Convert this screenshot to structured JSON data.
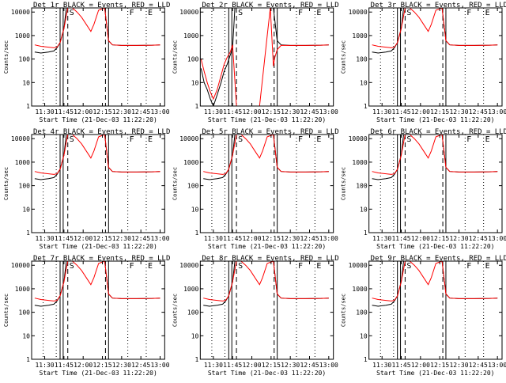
{
  "colors": {
    "background": "#ffffff",
    "axes": "#000000",
    "events": "#000000",
    "lld": "#ff0000"
  },
  "legend_text": "BLACK = Events, RED = LLD",
  "xlabel": "Start Time (21-Dec-03 11:22:20)",
  "ylabel": "Counts/sec",
  "x_ticks": [
    "11:30",
    "11:45",
    "12:00",
    "12:15",
    "12:30",
    "12:45",
    "13:00"
  ],
  "y_ticks": [
    "1",
    "10",
    "100",
    "1000",
    "10000"
  ],
  "markers": {
    "s_label": "S",
    "f_label": "F",
    "e_label": "E"
  },
  "chart_data": [
    {
      "type": "line",
      "title": "Det 1r",
      "xlabel": "Start Time (21-Dec-03 11:22:20)",
      "ylabel": "Counts/sec",
      "xlim": [
        11.33,
        13.06
      ],
      "ylim": [
        1,
        15000
      ],
      "yscale": "log",
      "legend": "BLACK = Events, RED = LLD",
      "series": [
        {
          "name": "Events",
          "x": [
            11.37,
            11.45,
            11.55,
            11.62,
            11.66,
            11.7,
            11.75,
            11.78,
            12.28,
            12.33,
            12.38,
            12.5,
            12.7,
            12.9,
            13.0
          ],
          "y": [
            200,
            180,
            200,
            220,
            300,
            500,
            2000,
            15000,
            15000,
            600,
            400,
            380,
            380,
            390,
            400
          ]
        },
        {
          "name": "LLD",
          "x": [
            11.37,
            11.45,
            11.55,
            11.62,
            11.66,
            11.7,
            11.75,
            11.8,
            11.86,
            11.92,
            11.98,
            12.04,
            12.1,
            12.14,
            12.2,
            12.28,
            12.33,
            12.38,
            12.5,
            12.7,
            12.9,
            13.0
          ],
          "y": [
            400,
            350,
            320,
            300,
            320,
            500,
            2000,
            15000,
            15000,
            10000,
            6000,
            3000,
            1500,
            3000,
            12000,
            15000,
            600,
            400,
            380,
            380,
            390,
            400
          ]
        }
      ]
    },
    {
      "type": "line",
      "title": "Det 2r",
      "xlabel": "Start Time (21-Dec-03 11:22:20)",
      "ylabel": "Counts/sec",
      "xlim": [
        11.33,
        13.06
      ],
      "ylim": [
        1,
        15000
      ],
      "yscale": "log",
      "legend": "BLACK = Events, RED = LLD",
      "series": [
        {
          "name": "Events",
          "x": [
            11.34,
            11.38,
            11.42,
            11.46,
            11.5,
            11.55,
            11.6,
            11.64,
            11.68,
            11.72,
            11.75,
            11.78,
            12.28,
            12.33,
            12.38,
            12.5,
            12.7,
            12.9,
            13.0
          ],
          "y": [
            40,
            10,
            5,
            2,
            1,
            3,
            10,
            30,
            60,
            150,
            300,
            15000,
            15000,
            600,
            400,
            380,
            380,
            390,
            400
          ]
        },
        {
          "name": "LLD",
          "x": [
            11.34,
            11.38,
            11.42,
            11.46,
            11.5,
            11.55,
            11.6,
            11.64,
            11.68,
            11.72,
            11.75,
            11.8,
            11.95,
            12.1,
            12.15,
            12.2,
            12.24,
            12.28,
            12.3,
            12.33,
            12.38,
            12.5,
            12.7,
            12.9,
            13.0
          ],
          "y": [
            100,
            30,
            10,
            4,
            2,
            5,
            20,
            60,
            120,
            200,
            400,
            1,
            1,
            1,
            30,
            1000,
            15000,
            50,
            120,
            250,
            380,
            380,
            380,
            390,
            400
          ]
        }
      ]
    },
    {
      "type": "line",
      "title": "Det 3r",
      "xlabel": "Start Time (21-Dec-03 11:22:20)",
      "ylabel": "Counts/sec",
      "xlim": [
        11.33,
        13.06
      ],
      "ylim": [
        1,
        15000
      ],
      "yscale": "log",
      "legend": "BLACK = Events, RED = LLD",
      "series": [
        {
          "name": "Events",
          "x": [
            11.37,
            11.45,
            11.55,
            11.62,
            11.66,
            11.7,
            11.75,
            11.78,
            12.28,
            12.33,
            12.38,
            12.5,
            12.7,
            12.9,
            13.0
          ],
          "y": [
            200,
            180,
            200,
            220,
            300,
            500,
            2000,
            15000,
            15000,
            600,
            400,
            380,
            380,
            390,
            400
          ]
        },
        {
          "name": "LLD",
          "x": [
            11.37,
            11.45,
            11.55,
            11.62,
            11.66,
            11.7,
            11.75,
            11.8,
            11.86,
            11.92,
            11.98,
            12.04,
            12.1,
            12.14,
            12.2,
            12.28,
            12.33,
            12.38,
            12.5,
            12.7,
            12.9,
            13.0
          ],
          "y": [
            400,
            350,
            320,
            300,
            320,
            500,
            2000,
            15000,
            15000,
            10000,
            6000,
            3000,
            1500,
            3000,
            12000,
            15000,
            600,
            400,
            380,
            380,
            390,
            400
          ]
        }
      ]
    },
    {
      "type": "line",
      "title": "Det 4r",
      "xlabel": "Start Time (21-Dec-03 11:22:20)",
      "ylabel": "Counts/sec",
      "xlim": [
        11.33,
        13.06
      ],
      "ylim": [
        1,
        15000
      ],
      "yscale": "log",
      "legend": "BLACK = Events, RED = LLD",
      "series": [
        {
          "name": "Events",
          "x": [
            11.37,
            11.45,
            11.55,
            11.62,
            11.66,
            11.7,
            11.75,
            11.78,
            12.28,
            12.33,
            12.38,
            12.5,
            12.7,
            12.9,
            13.0
          ],
          "y": [
            200,
            180,
            200,
            220,
            300,
            500,
            2000,
            15000,
            15000,
            600,
            400,
            380,
            380,
            390,
            400
          ]
        },
        {
          "name": "LLD",
          "x": [
            11.37,
            11.45,
            11.55,
            11.62,
            11.66,
            11.7,
            11.75,
            11.8,
            11.86,
            11.92,
            11.98,
            12.04,
            12.1,
            12.14,
            12.2,
            12.28,
            12.33,
            12.38,
            12.5,
            12.7,
            12.9,
            13.0
          ],
          "y": [
            400,
            350,
            320,
            300,
            320,
            500,
            2000,
            15000,
            15000,
            10000,
            6000,
            3000,
            1500,
            3000,
            12000,
            15000,
            600,
            400,
            380,
            380,
            390,
            400
          ]
        }
      ]
    },
    {
      "type": "line",
      "title": "Det 5r",
      "xlabel": "Start Time (21-Dec-03 11:22:20)",
      "ylabel": "Counts/sec",
      "xlim": [
        11.33,
        13.06
      ],
      "ylim": [
        1,
        15000
      ],
      "yscale": "log",
      "legend": "BLACK = Events, RED = LLD",
      "series": [
        {
          "name": "Events",
          "x": [
            11.37,
            11.45,
            11.55,
            11.62,
            11.66,
            11.7,
            11.75,
            11.78,
            12.28,
            12.33,
            12.38,
            12.5,
            12.7,
            12.9,
            13.0
          ],
          "y": [
            200,
            180,
            200,
            220,
            300,
            500,
            2000,
            15000,
            15000,
            600,
            400,
            380,
            380,
            390,
            400
          ]
        },
        {
          "name": "LLD",
          "x": [
            11.37,
            11.45,
            11.55,
            11.62,
            11.66,
            11.7,
            11.75,
            11.8,
            11.86,
            11.92,
            11.98,
            12.04,
            12.1,
            12.14,
            12.2,
            12.28,
            12.33,
            12.38,
            12.5,
            12.7,
            12.9,
            13.0
          ],
          "y": [
            400,
            350,
            320,
            300,
            320,
            500,
            2000,
            15000,
            15000,
            10000,
            6000,
            3000,
            1500,
            3000,
            12000,
            15000,
            600,
            400,
            380,
            380,
            390,
            400
          ]
        }
      ]
    },
    {
      "type": "line",
      "title": "Det 6r",
      "xlabel": "Start Time (21-Dec-03 11:22:20)",
      "ylabel": "Counts/sec",
      "xlim": [
        11.33,
        13.06
      ],
      "ylim": [
        1,
        15000
      ],
      "yscale": "log",
      "legend": "BLACK = Events, RED = LLD",
      "series": [
        {
          "name": "Events",
          "x": [
            11.37,
            11.45,
            11.55,
            11.62,
            11.66,
            11.7,
            11.75,
            11.78,
            12.28,
            12.33,
            12.38,
            12.5,
            12.7,
            12.9,
            13.0
          ],
          "y": [
            200,
            180,
            200,
            220,
            300,
            500,
            2000,
            15000,
            15000,
            600,
            400,
            380,
            380,
            390,
            400
          ]
        },
        {
          "name": "LLD",
          "x": [
            11.37,
            11.45,
            11.55,
            11.62,
            11.66,
            11.7,
            11.75,
            11.8,
            11.86,
            11.92,
            11.98,
            12.04,
            12.1,
            12.14,
            12.2,
            12.28,
            12.33,
            12.38,
            12.5,
            12.7,
            12.9,
            13.0
          ],
          "y": [
            400,
            350,
            320,
            300,
            320,
            500,
            2000,
            15000,
            15000,
            10000,
            6000,
            3000,
            1500,
            3000,
            12000,
            15000,
            600,
            400,
            380,
            380,
            390,
            400
          ]
        }
      ]
    },
    {
      "type": "line",
      "title": "Det 7r",
      "xlabel": "Start Time (21-Dec-03 11:22:20)",
      "ylabel": "Counts/sec",
      "xlim": [
        11.33,
        13.06
      ],
      "ylim": [
        1,
        15000
      ],
      "yscale": "log",
      "legend": "BLACK = Events, RED = LLD",
      "series": [
        {
          "name": "Events",
          "x": [
            11.37,
            11.45,
            11.55,
            11.62,
            11.66,
            11.7,
            11.75,
            11.78,
            12.28,
            12.33,
            12.38,
            12.5,
            12.7,
            12.9,
            13.0
          ],
          "y": [
            200,
            180,
            200,
            220,
            300,
            500,
            2000,
            15000,
            15000,
            600,
            400,
            380,
            380,
            390,
            400
          ]
        },
        {
          "name": "LLD",
          "x": [
            11.37,
            11.45,
            11.55,
            11.62,
            11.66,
            11.7,
            11.75,
            11.8,
            11.86,
            11.92,
            11.98,
            12.04,
            12.1,
            12.14,
            12.2,
            12.28,
            12.33,
            12.38,
            12.5,
            12.7,
            12.9,
            13.0
          ],
          "y": [
            400,
            350,
            320,
            300,
            320,
            500,
            2000,
            15000,
            15000,
            10000,
            6000,
            3000,
            1500,
            3000,
            12000,
            15000,
            600,
            400,
            380,
            380,
            390,
            400
          ]
        }
      ]
    },
    {
      "type": "line",
      "title": "Det 8r",
      "xlabel": "Start Time (21-Dec-03 11:22:20)",
      "ylabel": "Counts/sec",
      "xlim": [
        11.33,
        13.06
      ],
      "ylim": [
        1,
        15000
      ],
      "yscale": "log",
      "legend": "BLACK = Events, RED = LLD",
      "series": [
        {
          "name": "Events",
          "x": [
            11.37,
            11.45,
            11.55,
            11.62,
            11.66,
            11.7,
            11.75,
            11.78,
            12.28,
            12.33,
            12.38,
            12.5,
            12.7,
            12.9,
            13.0
          ],
          "y": [
            200,
            180,
            200,
            220,
            300,
            500,
            2000,
            15000,
            15000,
            600,
            400,
            380,
            380,
            390,
            400
          ]
        },
        {
          "name": "LLD",
          "x": [
            11.37,
            11.45,
            11.55,
            11.62,
            11.66,
            11.7,
            11.75,
            11.8,
            11.86,
            11.92,
            11.98,
            12.04,
            12.1,
            12.14,
            12.2,
            12.28,
            12.33,
            12.38,
            12.5,
            12.7,
            12.9,
            13.0
          ],
          "y": [
            400,
            350,
            320,
            300,
            320,
            500,
            2000,
            15000,
            15000,
            10000,
            6000,
            3000,
            1500,
            3000,
            12000,
            15000,
            600,
            400,
            380,
            380,
            390,
            400
          ]
        }
      ]
    },
    {
      "type": "line",
      "title": "Det 9r",
      "xlabel": "Start Time (21-Dec-03 11:22:20)",
      "ylabel": "Counts/sec",
      "xlim": [
        11.33,
        13.06
      ],
      "ylim": [
        1,
        15000
      ],
      "yscale": "log",
      "legend": "BLACK = Events, RED = LLD",
      "series": [
        {
          "name": "Events",
          "x": [
            11.37,
            11.45,
            11.55,
            11.62,
            11.66,
            11.7,
            11.75,
            11.78,
            12.28,
            12.33,
            12.38,
            12.5,
            12.7,
            12.9,
            13.0
          ],
          "y": [
            200,
            180,
            200,
            220,
            300,
            500,
            2000,
            15000,
            15000,
            600,
            400,
            380,
            380,
            390,
            400
          ]
        },
        {
          "name": "LLD",
          "x": [
            11.37,
            11.45,
            11.55,
            11.62,
            11.66,
            11.7,
            11.75,
            11.8,
            11.86,
            11.92,
            11.98,
            12.04,
            12.1,
            12.14,
            12.2,
            12.28,
            12.33,
            12.38,
            12.5,
            12.7,
            12.9,
            13.0
          ],
          "y": [
            400,
            350,
            320,
            300,
            320,
            500,
            2000,
            15000,
            15000,
            10000,
            6000,
            3000,
            1500,
            3000,
            12000,
            15000,
            600,
            400,
            380,
            380,
            390,
            400
          ]
        }
      ]
    }
  ]
}
